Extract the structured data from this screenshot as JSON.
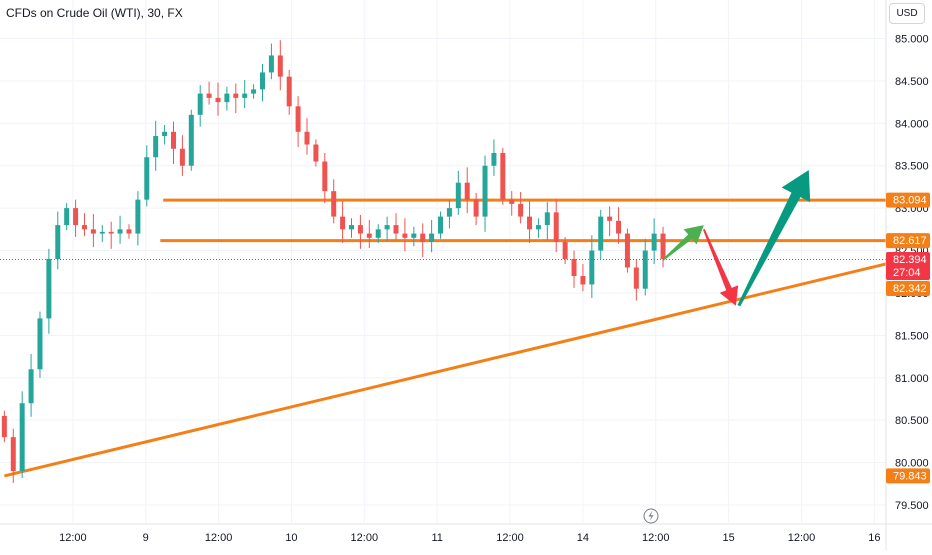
{
  "header": {
    "title": "CFDs on Crude Oil (WTI), 30, FX",
    "currency_button": "USD"
  },
  "chart_data": {
    "type": "candlestick",
    "symbol": "CFDs on Crude Oil (WTI)",
    "interval": "30",
    "exchange": "FX",
    "ylim": [
      79.5,
      85.1
    ],
    "y_ticks": [
      "85.000",
      "84.500",
      "84.000",
      "83.500",
      "83.000",
      "82.500",
      "82.000",
      "81.500",
      "81.000",
      "80.500",
      "80.000",
      "79.500"
    ],
    "x_ticks": [
      {
        "label": "12:00",
        "x": 0.5
      },
      {
        "label": "9",
        "x": 1.0
      },
      {
        "label": "12:00",
        "x": 1.5
      },
      {
        "label": "10",
        "x": 2.0
      },
      {
        "label": "12:00",
        "x": 2.5
      },
      {
        "label": "11",
        "x": 3.0
      },
      {
        "label": "12:00",
        "x": 3.5
      },
      {
        "label": "14",
        "x": 4.0
      },
      {
        "label": "12:00",
        "x": 4.5
      },
      {
        "label": "15",
        "x": 5.0
      },
      {
        "label": "12:00",
        "x": 5.5
      },
      {
        "label": "16",
        "x": 6.0
      }
    ],
    "price_labels": [
      {
        "value": 83.094,
        "text": "83.094",
        "color": "#f57f17"
      },
      {
        "value": 82.617,
        "text": "82.617",
        "color": "#f57f17"
      },
      {
        "value": 82.394,
        "text": "82.394",
        "sub": "27:04",
        "color": "#f23645"
      },
      {
        "value": 82.342,
        "text": "82.342",
        "color": "#f57f17"
      },
      {
        "value": 79.843,
        "text": "79.843",
        "color": "#f57f17"
      }
    ],
    "x_end": 4.55,
    "closes": [
      80.3,
      79.9,
      80.7,
      81.1,
      81.7,
      82.4,
      82.8,
      83.0,
      82.8,
      82.75,
      82.7,
      82.72,
      82.7,
      82.75,
      82.7,
      83.1,
      83.6,
      83.85,
      83.9,
      83.7,
      83.5,
      84.1,
      84.35,
      84.3,
      84.25,
      84.35,
      84.3,
      84.35,
      84.4,
      84.6,
      84.8,
      84.55,
      84.2,
      83.9,
      83.75,
      83.55,
      83.2,
      82.9,
      82.75,
      82.8,
      82.7,
      82.65,
      82.75,
      82.8,
      82.7,
      82.65,
      82.7,
      82.6,
      82.7,
      82.9,
      83.0,
      83.3,
      83.1,
      82.9,
      83.5,
      83.65,
      83.1,
      83.05,
      82.9,
      82.75,
      82.8,
      82.95,
      82.6,
      82.4,
      82.2,
      82.1,
      82.5,
      82.9,
      82.85,
      82.7,
      82.3,
      82.05,
      82.5,
      82.7,
      82.4
    ],
    "candle_colors": {
      "up": "#26a69a",
      "down": "#ef5350"
    },
    "horizontal_levels": [
      {
        "value": 83.094,
        "x_start": 1.12,
        "x_end": 6.0,
        "color": "#f57f17"
      },
      {
        "value": 82.617,
        "x_start": 1.1,
        "x_end": 6.0,
        "color": "#f57f17"
      }
    ],
    "trendline": {
      "x1": 0.03,
      "y1": 79.843,
      "x2": 6.0,
      "y2": 82.342,
      "color": "#f57f17"
    },
    "arrows": [
      {
        "from": [
          4.55,
          82.39
        ],
        "to": [
          4.83,
          82.8
        ],
        "color": "#4caf50",
        "kind": "up"
      },
      {
        "from": [
          4.83,
          82.75
        ],
        "to": [
          5.05,
          81.85
        ],
        "color": "#f23645",
        "kind": "down"
      },
      {
        "from": [
          5.07,
          81.85
        ],
        "to": [
          5.55,
          83.45
        ],
        "color": "#089981",
        "kind": "up"
      }
    ],
    "grid": true
  }
}
